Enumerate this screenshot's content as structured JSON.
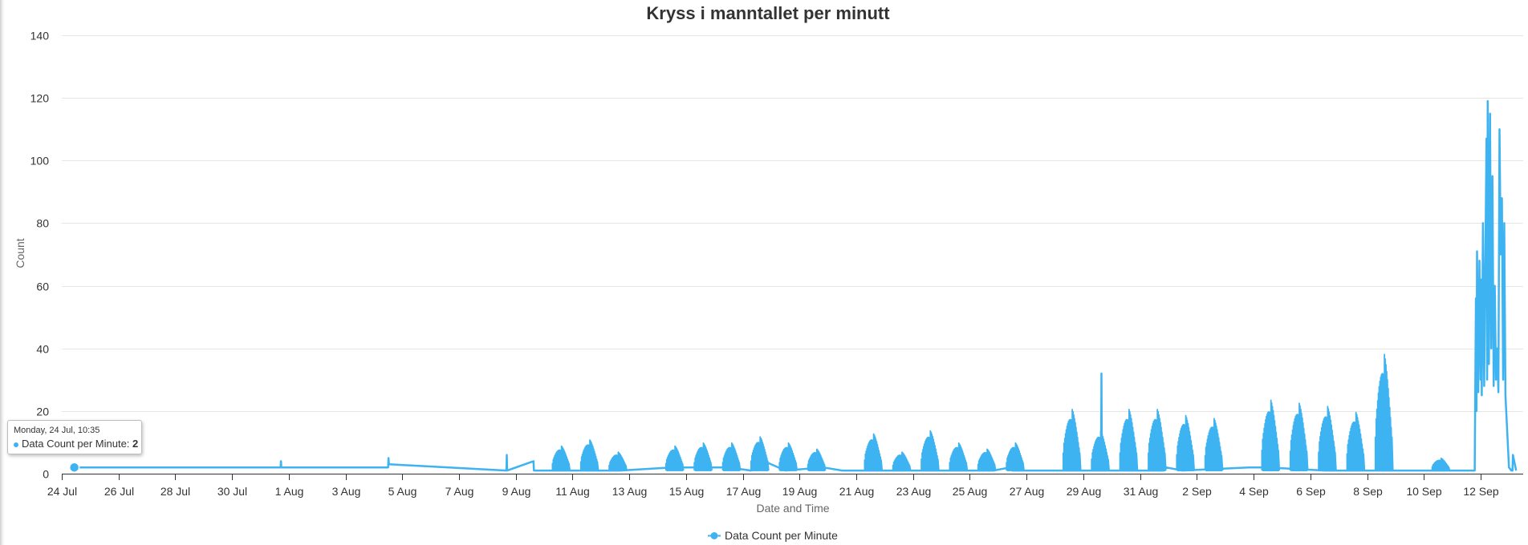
{
  "chart_data": {
    "type": "line",
    "title": "Kryss i manntallet per minutt",
    "xlabel": "Date and Time",
    "ylabel": "Count",
    "ylim": [
      0,
      140
    ],
    "yticks": [
      0,
      20,
      40,
      60,
      80,
      100,
      120,
      140
    ],
    "xlim": [
      "2023-07-24",
      "2023-09-13T12:00"
    ],
    "xtick_labels": [
      "24 Jul",
      "26 Jul",
      "28 Jul",
      "30 Jul",
      "1 Aug",
      "3 Aug",
      "5 Aug",
      "7 Aug",
      "9 Aug",
      "11 Aug",
      "13 Aug",
      "15 Aug",
      "17 Aug",
      "19 Aug",
      "21 Aug",
      "23 Aug",
      "25 Aug",
      "27 Aug",
      "29 Aug",
      "31 Aug",
      "2 Sep",
      "4 Sep",
      "6 Sep",
      "8 Sep",
      "10 Sep",
      "12 Sep"
    ],
    "grid": true,
    "legend_position": "bottom",
    "color": "#3db3f2",
    "series": [
      {
        "name": "Data Count per Minute",
        "x": [
          "2023-07-24T10:35",
          "2023-07-31T17:00",
          "2023-07-31T17:20",
          "2023-07-31T17:40",
          "2023-08-04T12:00",
          "2023-08-04T12:20",
          "2023-08-04T12:40",
          "2023-08-08T16:00",
          "2023-08-08T16:20",
          "2023-08-08T16:40",
          "2023-08-09T15:00",
          "2023-08-09T15:20",
          "2023-08-09T16:00",
          "2023-08-12T16:00",
          "2023-08-14T12:00",
          "2023-08-16T12:00",
          "2023-08-17T07:00",
          "2023-08-17T12:00",
          "2023-08-18T12:00",
          "2023-08-19T20:00",
          "2023-08-20T12:00",
          "2023-08-25T20:00",
          "2023-08-26T10:00",
          "2023-08-26T12:00",
          "2023-08-29T12:00",
          "2023-08-29T15:00",
          "2023-08-29T15:20",
          "2023-08-29T15:40",
          "2023-08-30T12:00",
          "2023-08-31T20:00",
          "2023-08-31T22:00",
          "2023-09-01T12:00",
          "2023-09-03T20:00",
          "2023-09-04T08:00",
          "2023-09-04T12:00",
          "2023-09-06T12:00",
          "2023-09-08T12:00",
          "2023-09-10T20:00",
          "2023-09-11T12:00",
          "2023-09-11T19:00",
          "2023-09-11T20:00",
          "2023-09-11T20:30",
          "2023-09-11T21:00",
          "2023-09-11T22:00",
          "2023-09-11T23:00",
          "2023-09-12T00:00",
          "2023-09-12T00:30",
          "2023-09-12T01:00",
          "2023-09-12T02:00",
          "2023-09-12T03:00",
          "2023-09-12T05:00",
          "2023-09-12T05:30",
          "2023-09-12T06:00",
          "2023-09-12T07:00",
          "2023-09-12T08:00",
          "2023-09-12T09:00",
          "2023-09-12T10:00",
          "2023-09-12T11:00",
          "2023-09-12T12:00",
          "2023-09-12T13:00",
          "2023-09-12T14:00",
          "2023-09-12T15:00",
          "2023-09-12T16:00",
          "2023-09-12T17:00",
          "2023-09-12T18:00",
          "2023-09-12T19:00",
          "2023-09-12T20:00",
          "2023-09-12T21:00",
          "2023-09-13T00:00",
          "2023-09-13T02:00",
          "2023-09-13T03:00",
          "2023-09-13T03:20",
          "2023-09-13T06:00"
        ],
        "y": [
          2,
          2,
          4,
          2,
          2,
          5,
          3,
          1,
          6,
          1,
          4,
          1,
          1,
          1,
          2,
          2,
          1,
          5,
          1,
          2,
          1,
          1,
          2,
          1,
          1,
          1,
          32,
          1,
          1,
          1,
          2,
          1,
          2,
          2,
          2,
          1,
          1,
          1,
          1,
          1,
          56,
          20,
          71,
          26,
          68,
          30,
          62,
          25,
          80,
          28,
          107,
          30,
          119,
          35,
          115,
          40,
          95,
          28,
          60,
          30,
          40,
          26,
          110,
          70,
          88,
          30,
          80,
          25,
          2,
          1,
          1,
          6,
          1
        ],
        "bursts": [
          {
            "date": "2023-08-10",
            "peak": 9
          },
          {
            "date": "2023-08-11",
            "peak": 11
          },
          {
            "date": "2023-08-12",
            "peak": 7
          },
          {
            "date": "2023-08-14",
            "peak": 9
          },
          {
            "date": "2023-08-15",
            "peak": 10
          },
          {
            "date": "2023-08-16",
            "peak": 10
          },
          {
            "date": "2023-08-17",
            "peak": 12
          },
          {
            "date": "2023-08-18",
            "peak": 10
          },
          {
            "date": "2023-08-19",
            "peak": 8
          },
          {
            "date": "2023-08-21",
            "peak": 13
          },
          {
            "date": "2023-08-22",
            "peak": 7
          },
          {
            "date": "2023-08-23",
            "peak": 14
          },
          {
            "date": "2023-08-24",
            "peak": 10
          },
          {
            "date": "2023-08-25",
            "peak": 8
          },
          {
            "date": "2023-08-26",
            "peak": 10
          },
          {
            "date": "2023-08-28",
            "peak": 21
          },
          {
            "date": "2023-08-29",
            "peak": 14
          },
          {
            "date": "2023-08-30",
            "peak": 21
          },
          {
            "date": "2023-08-31",
            "peak": 21
          },
          {
            "date": "2023-09-01",
            "peak": 19
          },
          {
            "date": "2023-09-02",
            "peak": 18
          },
          {
            "date": "2023-09-04",
            "peak": 24
          },
          {
            "date": "2023-09-05",
            "peak": 23
          },
          {
            "date": "2023-09-06",
            "peak": 22
          },
          {
            "date": "2023-09-07",
            "peak": 20
          },
          {
            "date": "2023-09-08",
            "peak": 39
          },
          {
            "date": "2023-09-10",
            "peak": 5
          }
        ]
      }
    ]
  },
  "tooltip": {
    "date": "Monday, 24 Jul, 10:35",
    "series": "Data Count per Minute",
    "separator": ": ",
    "value": "2"
  }
}
